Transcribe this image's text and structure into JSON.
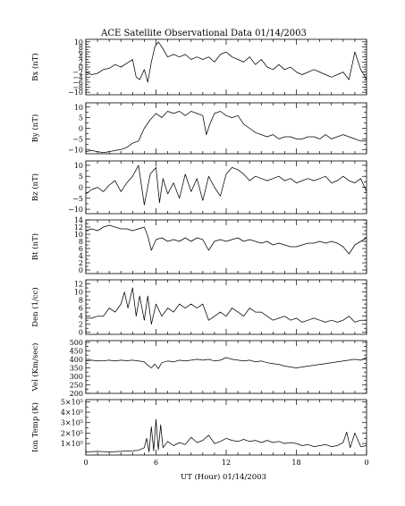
{
  "title": "ACE Satellite Observational Data   01/14/2003",
  "xlabel": "UT (Hour)   01/14/2003",
  "chart_data": {
    "type": "line",
    "title": "ACE Satellite Observational Data   01/14/2003",
    "xlabel": "UT (Hour)   01/14/2003",
    "x_tick_labels": [
      "0",
      "6",
      "12",
      "18",
      "0"
    ],
    "xlim": [
      0,
      24
    ],
    "grid": false,
    "panels": [
      {
        "name": "Bx",
        "ylabel": "Bx (nT)",
        "ylim": [
          -11,
          11
        ],
        "y_ticks": [
          -10,
          -8,
          -6,
          -4,
          -2,
          0,
          2,
          4,
          6,
          8,
          10
        ],
        "y_tick_labels": [
          "−10",
          "−8",
          "−6",
          "−4",
          "−2",
          "0",
          "2",
          "4",
          "6",
          "8",
          "10"
        ],
        "series": {
          "x": [
            0,
            0.5,
            1,
            1.5,
            2,
            2.5,
            3,
            3.5,
            4,
            4.3,
            4.6,
            5,
            5.3,
            5.6,
            5.9,
            6.2,
            6.5,
            7,
            7.5,
            8,
            8.5,
            9,
            9.5,
            10,
            10.5,
            11,
            11.5,
            12,
            12.5,
            13,
            13.5,
            14,
            14.5,
            15,
            15.5,
            16,
            16.5,
            17,
            17.5,
            18,
            18.5,
            19,
            19.5,
            20,
            20.5,
            21,
            21.5,
            22,
            22.5,
            23,
            23.5,
            24
          ],
          "values": [
            -2,
            -3,
            -2.5,
            -1,
            -0.5,
            1,
            0,
            1.5,
            3,
            -4,
            -5,
            -1,
            -6,
            2,
            8,
            10,
            8,
            4,
            5,
            4,
            5,
            3,
            4,
            3,
            4,
            2,
            5,
            6,
            4,
            3,
            2,
            4,
            1,
            3,
            0,
            -1,
            1,
            -1,
            0,
            -2,
            -3,
            -2,
            -1,
            -2,
            -3,
            -4,
            -3,
            -2,
            -5,
            6,
            -1,
            -5
          ]
        }
      },
      {
        "name": "By",
        "ylabel": "By (nT)",
        "ylim": [
          -12,
          12
        ],
        "y_ticks": [
          -10,
          -5,
          0,
          5,
          10
        ],
        "y_tick_labels": [
          "−10",
          "−5",
          "0",
          "5",
          "10"
        ],
        "series": {
          "x": [
            0,
            0.5,
            1,
            1.5,
            2,
            2.5,
            3,
            3.5,
            4,
            4.5,
            5,
            5.5,
            6,
            6.5,
            7,
            7.5,
            8,
            8.5,
            9,
            9.5,
            10,
            10.3,
            10.6,
            11,
            11.5,
            12,
            12.5,
            13,
            13.5,
            14,
            14.5,
            15,
            15.5,
            16,
            16.5,
            17,
            17.5,
            18,
            18.5,
            19,
            19.5,
            20,
            20.5,
            21,
            21.5,
            22,
            22.5,
            23,
            23.5,
            24
          ],
          "values": [
            -11,
            -10.5,
            -11,
            -11.5,
            -11,
            -10.5,
            -10,
            -9,
            -7,
            -6,
            0,
            4,
            7,
            5,
            8,
            7,
            8,
            6,
            8,
            7,
            6,
            -3,
            2,
            7,
            8,
            6,
            5,
            6,
            2,
            0,
            -2,
            -3,
            -4,
            -3,
            -5,
            -4,
            -4,
            -5,
            -5,
            -4,
            -4,
            -5,
            -3,
            -5,
            -4,
            -3,
            -4,
            -5,
            -6,
            -6
          ]
        }
      },
      {
        "name": "Bz",
        "ylabel": "Bz (nT)",
        "ylim": [
          -12,
          12
        ],
        "y_ticks": [
          -10,
          -5,
          0,
          5,
          10
        ],
        "y_tick_labels": [
          "−10",
          "−5",
          "0",
          "5",
          "10"
        ],
        "series": {
          "x": [
            0,
            0.5,
            1,
            1.5,
            2,
            2.5,
            3,
            3.5,
            4,
            4.5,
            5,
            5.5,
            6,
            6.3,
            6.6,
            7,
            7.5,
            8,
            8.5,
            9,
            9.5,
            10,
            10.5,
            11,
            11.5,
            12,
            12.5,
            13,
            13.5,
            14,
            14.5,
            15,
            15.5,
            16,
            16.5,
            17,
            17.5,
            18,
            18.5,
            19,
            19.5,
            20,
            20.5,
            21,
            21.5,
            22,
            22.5,
            23,
            23.5,
            24
          ],
          "values": [
            -3,
            -1,
            0,
            -2,
            1,
            3,
            -2,
            2,
            5,
            10,
            -8,
            6,
            9,
            -7,
            4,
            -3,
            2,
            -5,
            6,
            -2,
            4,
            -6,
            5,
            0,
            -4,
            6,
            9,
            8,
            6,
            3,
            5,
            4,
            3,
            4,
            5,
            3,
            4,
            2,
            3,
            4,
            3,
            4,
            5,
            2,
            3,
            5,
            3,
            2,
            4,
            -2
          ]
        }
      },
      {
        "name": "Bt",
        "ylabel": "Bt (nT)",
        "ylim": [
          -1,
          14
        ],
        "y_ticks": [
          0,
          2,
          4,
          6,
          8,
          10,
          12,
          14
        ],
        "y_tick_labels": [
          "0",
          "2",
          "4",
          "6",
          "8",
          "10",
          "12",
          "14"
        ],
        "series": {
          "x": [
            0,
            0.5,
            1,
            1.5,
            2,
            2.5,
            3,
            3.5,
            4,
            4.5,
            5,
            5.3,
            5.6,
            6,
            6.5,
            7,
            7.5,
            8,
            8.5,
            9,
            9.5,
            10,
            10.5,
            11,
            11.5,
            12,
            12.5,
            13,
            13.5,
            14,
            14.5,
            15,
            15.5,
            16,
            16.5,
            17,
            17.5,
            18,
            18.5,
            19,
            19.5,
            20,
            20.5,
            21,
            21.5,
            22,
            22.5,
            23,
            23.5,
            24
          ],
          "values": [
            11,
            11.5,
            11,
            12,
            12.5,
            12,
            11.5,
            11.5,
            11,
            11.5,
            12,
            9.5,
            5.5,
            8.5,
            9,
            8,
            8.5,
            8,
            9,
            8,
            9,
            8.5,
            5.5,
            8,
            8.5,
            8,
            8.5,
            9,
            8,
            8.5,
            8,
            7.5,
            8,
            7,
            7.5,
            7,
            6.5,
            6.5,
            7,
            7.5,
            7.5,
            8,
            7.5,
            8,
            7.5,
            6.5,
            4.5,
            7,
            8,
            9
          ]
        }
      },
      {
        "name": "Den",
        "ylabel": "Den (1/cc)",
        "ylim": [
          -0.5,
          13
        ],
        "y_ticks": [
          0,
          2,
          4,
          6,
          8,
          10,
          12
        ],
        "y_tick_labels": [
          "0",
          "2",
          "4",
          "6",
          "8",
          "10",
          "12"
        ],
        "series": {
          "x": [
            0,
            0.5,
            1,
            1.5,
            2,
            2.5,
            3,
            3.3,
            3.6,
            4,
            4.3,
            4.6,
            5,
            5.3,
            5.6,
            6,
            6.5,
            7,
            7.5,
            8,
            8.5,
            9,
            9.5,
            10,
            10.5,
            11,
            11.5,
            12,
            12.5,
            13,
            13.5,
            14,
            14.5,
            15,
            15.5,
            16,
            16.5,
            17,
            17.5,
            18,
            18.5,
            19,
            19.5,
            20,
            20.5,
            21,
            21.5,
            22,
            22.5,
            23,
            23.5,
            24
          ],
          "values": [
            3.5,
            3.5,
            4,
            4,
            6,
            5,
            7,
            10,
            6,
            11,
            4,
            9,
            3,
            9,
            2,
            7,
            4,
            6,
            5,
            7,
            6,
            7,
            6,
            7,
            3,
            4,
            5,
            4,
            6,
            5,
            4,
            6,
            5,
            5,
            4,
            3,
            3.5,
            4,
            3,
            3.5,
            2.5,
            3,
            3.5,
            3,
            2.5,
            3,
            2.5,
            3,
            4,
            2.5,
            3,
            3
          ]
        }
      },
      {
        "name": "Vel",
        "ylabel": "Vel (Km/sec)",
        "ylim": [
          200,
          510
        ],
        "y_ticks": [
          200,
          250,
          300,
          350,
          400,
          450,
          500
        ],
        "y_tick_labels": [
          "200",
          "250",
          "300",
          "350",
          "400",
          "450",
          "500"
        ],
        "series": {
          "x": [
            0,
            0.5,
            1,
            1.5,
            2,
            2.5,
            3,
            3.5,
            4,
            4.5,
            5,
            5.3,
            5.6,
            5.9,
            6.2,
            6.5,
            7,
            7.5,
            8,
            8.5,
            9,
            9.5,
            10,
            10.5,
            11,
            11.5,
            12,
            12.5,
            13,
            13.5,
            14,
            14.5,
            15,
            15.5,
            16,
            16.5,
            17,
            17.5,
            18,
            18.5,
            19,
            19.5,
            20,
            20.5,
            21,
            21.5,
            22,
            22.5,
            23,
            23.5,
            24
          ],
          "values": [
            390,
            395,
            390,
            392,
            395,
            390,
            395,
            392,
            395,
            390,
            385,
            365,
            350,
            372,
            345,
            380,
            390,
            385,
            395,
            390,
            395,
            400,
            395,
            400,
            390,
            395,
            410,
            400,
            395,
            390,
            395,
            385,
            390,
            380,
            375,
            370,
            360,
            355,
            350,
            355,
            360,
            365,
            370,
            375,
            380,
            385,
            390,
            395,
            400,
            395,
            410
          ]
        }
      },
      {
        "name": "Ion Temp",
        "ylabel": "Ion Temp (K)",
        "ylim": [
          -10000,
          520000
        ],
        "y_ticks": [
          100000,
          200000,
          300000,
          400000,
          500000
        ],
        "y_tick_labels": [
          "1×10⁵",
          "2×10⁵",
          "3×10⁵",
          "4×10⁵",
          "5×10⁵"
        ],
        "series": {
          "x": [
            0,
            1,
            2,
            3,
            4,
            4.5,
            5,
            5.2,
            5.4,
            5.6,
            5.8,
            6,
            6.2,
            6.4,
            6.6,
            7,
            7.5,
            8,
            8.5,
            9,
            9.5,
            10,
            10.5,
            11,
            11.5,
            12,
            12.5,
            13,
            13.5,
            14,
            14.5,
            15,
            15.5,
            16,
            16.5,
            17,
            17.5,
            18,
            18.5,
            19,
            19.5,
            20,
            20.5,
            21,
            21.5,
            22,
            22.3,
            22.6,
            23,
            23.5,
            24
          ],
          "values": [
            20000,
            25000,
            20000,
            25000,
            30000,
            35000,
            60000,
            150000,
            20000,
            260000,
            30000,
            330000,
            40000,
            280000,
            60000,
            120000,
            80000,
            110000,
            90000,
            160000,
            110000,
            130000,
            180000,
            100000,
            120000,
            150000,
            130000,
            120000,
            140000,
            120000,
            130000,
            110000,
            130000,
            110000,
            120000,
            100000,
            110000,
            100000,
            80000,
            90000,
            70000,
            80000,
            90000,
            70000,
            80000,
            110000,
            210000,
            60000,
            200000,
            70000,
            80000
          ]
        }
      }
    ]
  }
}
